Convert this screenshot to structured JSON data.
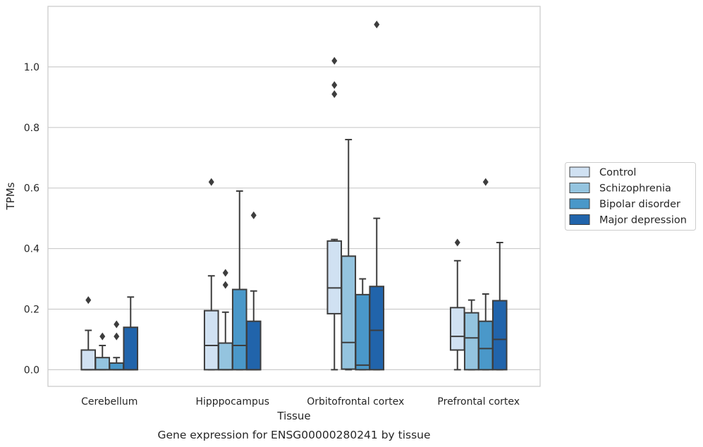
{
  "chart_data": {
    "type": "box",
    "xlabel": "Tissue",
    "ylabel": "TPMs",
    "caption": "Gene expression for ENSG00000280241 by tissue",
    "ylim": [
      -0.055,
      1.2
    ],
    "yticks": [
      "0.0",
      "0.2",
      "0.4",
      "0.6",
      "0.8",
      "1.0"
    ],
    "grid": "horizontal",
    "legend_position": "right",
    "categories": [
      "Cerebellum",
      "Hipppocampus",
      "Orbitofrontal cortex",
      "Prefrontal cortex"
    ],
    "series": [
      {
        "name": "Control",
        "color": "#d0e1f2",
        "boxes": [
          {
            "whislo": 0.0,
            "q1": 0.0,
            "med": 0.0,
            "q3": 0.065,
            "whishi": 0.13,
            "fliers": [
              0.23
            ]
          },
          {
            "whislo": 0.0,
            "q1": 0.0,
            "med": 0.08,
            "q3": 0.195,
            "whishi": 0.31,
            "fliers": [
              0.62
            ]
          },
          {
            "whislo": 0.0,
            "q1": 0.185,
            "med": 0.27,
            "q3": 0.425,
            "whishi": 0.43,
            "fliers": [
              0.91,
              0.94,
              1.02
            ]
          },
          {
            "whislo": 0.0,
            "q1": 0.065,
            "med": 0.11,
            "q3": 0.205,
            "whishi": 0.36,
            "fliers": [
              0.42
            ]
          }
        ]
      },
      {
        "name": "Schizophrenia",
        "color": "#94c4df",
        "boxes": [
          {
            "whislo": 0.0,
            "q1": 0.0,
            "med": 0.0,
            "q3": 0.04,
            "whishi": 0.08,
            "fliers": [
              0.11
            ]
          },
          {
            "whislo": 0.0,
            "q1": 0.0,
            "med": 0.0,
            "q3": 0.088,
            "whishi": 0.19,
            "fliers": [
              0.28,
              0.32
            ]
          },
          {
            "whislo": 0.0,
            "q1": 0.002,
            "med": 0.09,
            "q3": 0.375,
            "whishi": 0.76,
            "fliers": []
          },
          {
            "whislo": 0.0,
            "q1": 0.0,
            "med": 0.105,
            "q3": 0.188,
            "whishi": 0.23,
            "fliers": []
          }
        ]
      },
      {
        "name": "Bipolar disorder",
        "color": "#4a98c9",
        "boxes": [
          {
            "whislo": 0.0,
            "q1": 0.0,
            "med": 0.0,
            "q3": 0.022,
            "whishi": 0.04,
            "fliers": [
              0.11,
              0.15
            ]
          },
          {
            "whislo": 0.0,
            "q1": 0.0,
            "med": 0.08,
            "q3": 0.265,
            "whishi": 0.59,
            "fliers": []
          },
          {
            "whislo": 0.0,
            "q1": 0.0,
            "med": 0.015,
            "q3": 0.248,
            "whishi": 0.3,
            "fliers": []
          },
          {
            "whislo": 0.0,
            "q1": 0.0,
            "med": 0.07,
            "q3": 0.16,
            "whishi": 0.25,
            "fliers": [
              0.62
            ]
          }
        ]
      },
      {
        "name": "Major depression",
        "color": "#2164ab",
        "boxes": [
          {
            "whislo": 0.0,
            "q1": 0.0,
            "med": 0.0,
            "q3": 0.14,
            "whishi": 0.24,
            "fliers": []
          },
          {
            "whislo": 0.0,
            "q1": 0.0,
            "med": 0.0,
            "q3": 0.16,
            "whishi": 0.26,
            "fliers": [
              0.51
            ]
          },
          {
            "whislo": 0.0,
            "q1": 0.0,
            "med": 0.13,
            "q3": 0.275,
            "whishi": 0.5,
            "fliers": [
              1.14
            ]
          },
          {
            "whislo": 0.0,
            "q1": 0.0,
            "med": 0.1,
            "q3": 0.228,
            "whishi": 0.42,
            "fliers": []
          }
        ]
      }
    ]
  }
}
